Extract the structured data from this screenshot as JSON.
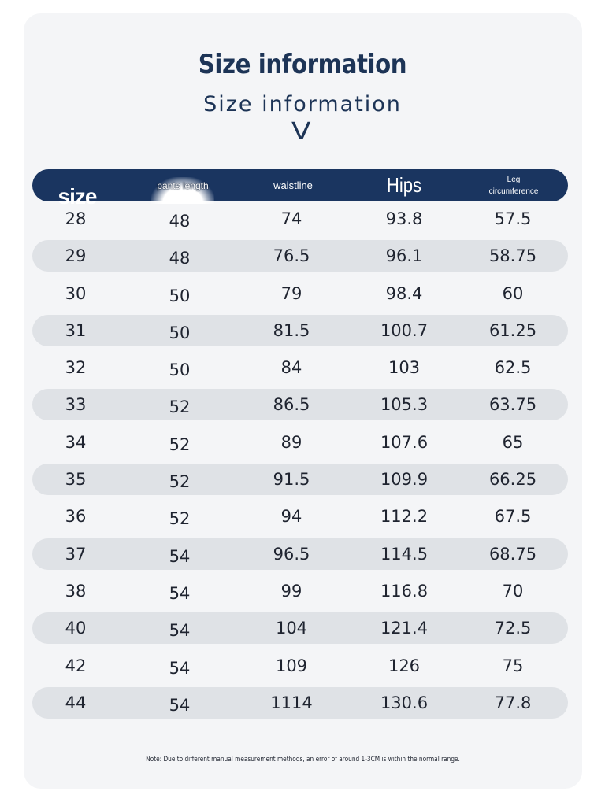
{
  "title": "Size information",
  "subtitle": "Size information",
  "chevron": "V",
  "headers": {
    "size": "size",
    "pants_length": "pants length",
    "waistline": "waistline",
    "hips": "Hips",
    "leg_line1": "Leg",
    "leg_line2": "circumference"
  },
  "rows": [
    [
      "28",
      "48",
      "74",
      "93.8",
      "57.5"
    ],
    [
      "29",
      "48",
      "76.5",
      "96.1",
      "58.75"
    ],
    [
      "30",
      "50",
      "79",
      "98.4",
      "60"
    ],
    [
      "31",
      "50",
      "81.5",
      "100.7",
      "61.25"
    ],
    [
      "32",
      "50",
      "84",
      "103",
      "62.5"
    ],
    [
      "33",
      "52",
      "86.5",
      "105.3",
      "63.75"
    ],
    [
      "34",
      "52",
      "89",
      "107.6",
      "65"
    ],
    [
      "35",
      "52",
      "91.5",
      "109.9",
      "66.25"
    ],
    [
      "36",
      "52",
      "94",
      "112.2",
      "67.5"
    ],
    [
      "37",
      "54",
      "96.5",
      "114.5",
      "68.75"
    ],
    [
      "38",
      "54",
      "99",
      "116.8",
      "70"
    ],
    [
      "40",
      "54",
      "104",
      "121.4",
      "72.5"
    ],
    [
      "42",
      "54",
      "109",
      "126",
      "75"
    ],
    [
      "44",
      "54",
      "1114",
      "130.6",
      "77.8"
    ]
  ],
  "note": "Note: Due to different manual measurement methods, an error of around 1-3CM is within the normal range.",
  "colors": {
    "header_bg": "#1a3560",
    "title": "#1d3456",
    "alt_row": "#dfe2e6",
    "card_bg": "#f4f5f7"
  }
}
